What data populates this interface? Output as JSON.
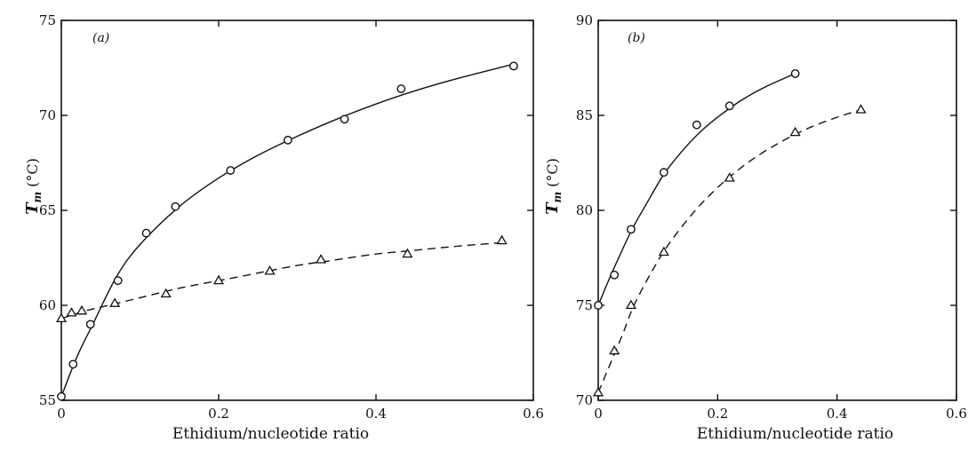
{
  "chart_data": [
    {
      "type": "scatter",
      "panel_label": "(a)",
      "xlabel": "Ethidium/nucleotide ratio",
      "ylabel_main": "T",
      "ylabel_sub": "m",
      "ylabel_unit": "(°C)",
      "xlim": [
        0,
        0.6
      ],
      "ylim": [
        55,
        75
      ],
      "xticks": [
        0,
        0.2,
        0.4,
        0.6
      ],
      "xtick_labels": [
        "0",
        "0.2",
        "0.4",
        "0.6"
      ],
      "yticks": [
        55,
        60,
        65,
        70,
        75
      ],
      "ytick_labels": [
        "55",
        "60",
        "65",
        "70",
        "75"
      ],
      "grid": false,
      "series": [
        {
          "marker": "circle",
          "line": "solid",
          "points": [
            [
              0.0,
              55.2
            ],
            [
              0.015,
              56.9
            ],
            [
              0.037,
              59.0
            ],
            [
              0.072,
              61.3
            ],
            [
              0.108,
              63.8
            ],
            [
              0.145,
              65.2
            ],
            [
              0.215,
              67.1
            ],
            [
              0.288,
              68.7
            ],
            [
              0.36,
              69.8
            ],
            [
              0.432,
              71.4
            ],
            [
              0.575,
              72.6
            ]
          ],
          "curve": [
            [
              0.0,
              55.2
            ],
            [
              0.02,
              57.3
            ],
            [
              0.04,
              59.0
            ],
            [
              0.07,
              61.5
            ],
            [
              0.1,
              63.2
            ],
            [
              0.15,
              65.2
            ],
            [
              0.2,
              66.7
            ],
            [
              0.25,
              67.9
            ],
            [
              0.3,
              68.9
            ],
            [
              0.35,
              69.8
            ],
            [
              0.4,
              70.6
            ],
            [
              0.45,
              71.3
            ],
            [
              0.5,
              71.9
            ],
            [
              0.575,
              72.7
            ]
          ]
        },
        {
          "marker": "triangle",
          "line": "dashed",
          "points": [
            [
              0.0,
              59.3
            ],
            [
              0.013,
              59.6
            ],
            [
              0.026,
              59.7
            ],
            [
              0.068,
              60.1
            ],
            [
              0.133,
              60.6
            ],
            [
              0.2,
              61.3
            ],
            [
              0.265,
              61.8
            ],
            [
              0.33,
              62.4
            ],
            [
              0.44,
              62.7
            ],
            [
              0.56,
              63.4
            ]
          ],
          "curve": [
            [
              0.0,
              59.3
            ],
            [
              0.03,
              59.7
            ],
            [
              0.06,
              60.0
            ],
            [
              0.1,
              60.4
            ],
            [
              0.15,
              60.9
            ],
            [
              0.2,
              61.3
            ],
            [
              0.25,
              61.7
            ],
            [
              0.3,
              62.1
            ],
            [
              0.35,
              62.4
            ],
            [
              0.4,
              62.7
            ],
            [
              0.45,
              62.9
            ],
            [
              0.5,
              63.1
            ],
            [
              0.56,
              63.3
            ]
          ]
        }
      ]
    },
    {
      "type": "scatter",
      "panel_label": "(b)",
      "xlabel": "Ethidium/nucleotide ratio",
      "ylabel_main": "T",
      "ylabel_sub": "m",
      "ylabel_unit": "(°C)",
      "xlim": [
        0,
        0.6
      ],
      "ylim": [
        70,
        90
      ],
      "xticks": [
        0,
        0.2,
        0.4,
        0.6
      ],
      "xtick_labels": [
        "0",
        "0.2",
        "0.4",
        "0.6"
      ],
      "yticks": [
        70,
        75,
        80,
        85,
        90
      ],
      "ytick_labels": [
        "70",
        "75",
        "80",
        "85",
        "90"
      ],
      "grid": false,
      "series": [
        {
          "marker": "circle",
          "line": "solid",
          "points": [
            [
              0.0,
              75.0
            ],
            [
              0.027,
              76.6
            ],
            [
              0.055,
              79.0
            ],
            [
              0.11,
              82.0
            ],
            [
              0.165,
              84.5
            ],
            [
              0.22,
              85.5
            ],
            [
              0.33,
              87.2
            ]
          ],
          "curve": [
            [
              0.0,
              75.0
            ],
            [
              0.02,
              76.5
            ],
            [
              0.04,
              77.9
            ],
            [
              0.06,
              79.2
            ],
            [
              0.08,
              80.3
            ],
            [
              0.11,
              81.9
            ],
            [
              0.14,
              83.1
            ],
            [
              0.17,
              84.1
            ],
            [
              0.2,
              84.9
            ],
            [
              0.24,
              85.8
            ],
            [
              0.28,
              86.5
            ],
            [
              0.33,
              87.2
            ]
          ]
        },
        {
          "marker": "triangle",
          "line": "dashed",
          "points": [
            [
              0.0,
              70.4
            ],
            [
              0.027,
              72.6
            ],
            [
              0.055,
              75.0
            ],
            [
              0.11,
              77.8
            ],
            [
              0.22,
              81.7
            ],
            [
              0.33,
              84.1
            ],
            [
              0.44,
              85.3
            ]
          ],
          "curve": [
            [
              0.0,
              70.4
            ],
            [
              0.02,
              71.9
            ],
            [
              0.04,
              73.4
            ],
            [
              0.06,
              75.0
            ],
            [
              0.09,
              76.8
            ],
            [
              0.12,
              78.3
            ],
            [
              0.16,
              79.9
            ],
            [
              0.2,
              81.2
            ],
            [
              0.25,
              82.5
            ],
            [
              0.3,
              83.5
            ],
            [
              0.35,
              84.3
            ],
            [
              0.4,
              84.9
            ],
            [
              0.44,
              85.3
            ]
          ]
        }
      ]
    }
  ]
}
